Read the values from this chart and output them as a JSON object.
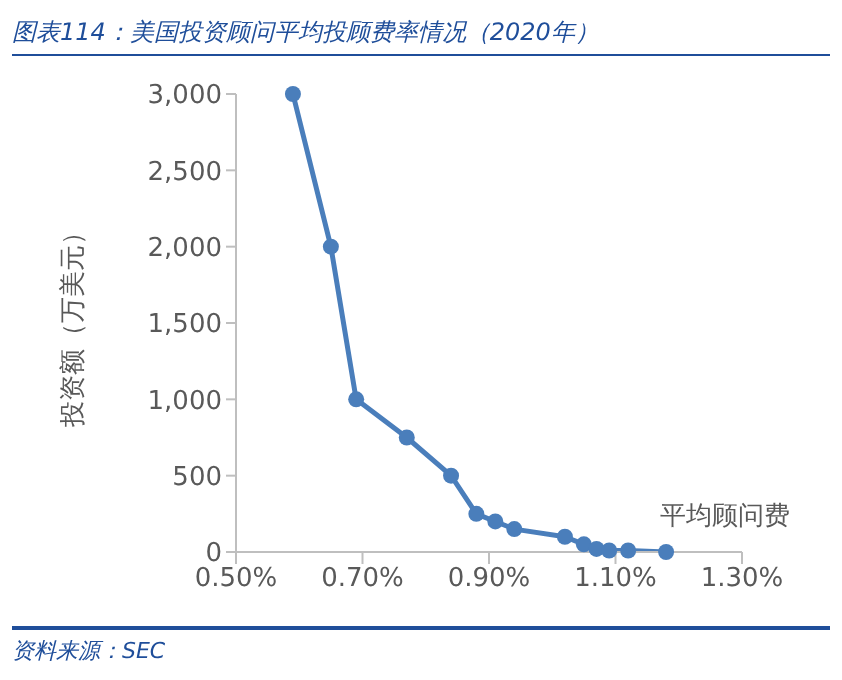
{
  "chart_data": {
    "type": "line",
    "title": "图表114：美国投资顾问平均投顾费率情况（2020年）",
    "xlabel": "平均顾问费",
    "ylabel": "投资额（万美元）",
    "x": [
      0.59,
      0.65,
      0.69,
      0.77,
      0.84,
      0.88,
      0.91,
      0.94,
      1.02,
      1.05,
      1.07,
      1.09,
      1.12,
      1.18
    ],
    "series": [
      {
        "color": "#4a7ebb",
        "values": [
          3000,
          2000,
          1000,
          750,
          500,
          250,
          200,
          150,
          100,
          50,
          20,
          10,
          10,
          0
        ]
      }
    ],
    "xlim": [
      0.5,
      1.3
    ],
    "xticks": [
      {
        "value": 0.5,
        "label": "0.50%"
      },
      {
        "value": 0.7,
        "label": "0.70%"
      },
      {
        "value": 0.9,
        "label": "0.90%"
      },
      {
        "value": 1.1,
        "label": "1.10%"
      },
      {
        "value": 1.3,
        "label": "1.30%"
      }
    ],
    "ylim": [
      0,
      3000
    ],
    "yticks": [
      {
        "value": 0,
        "label": "0"
      },
      {
        "value": 500,
        "label": "500"
      },
      {
        "value": 1000,
        "label": "1,000"
      },
      {
        "value": 1500,
        "label": "1,500"
      },
      {
        "value": 2000,
        "label": "2,000"
      },
      {
        "value": 2500,
        "label": "2,500"
      },
      {
        "value": 3000,
        "label": "3,000"
      }
    ],
    "grid": false,
    "legend": false,
    "marker": "circle",
    "line_style": "solid",
    "annotations": [
      "资料来源：SEC"
    ]
  }
}
